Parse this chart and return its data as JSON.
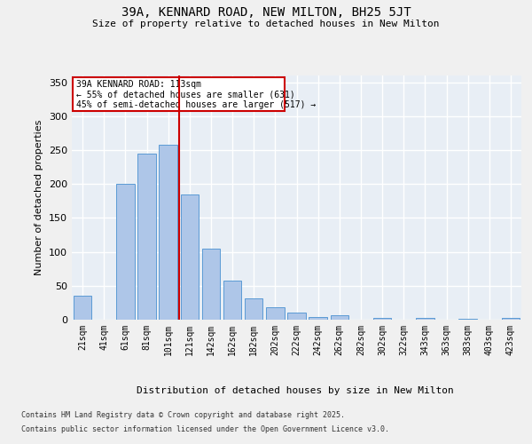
{
  "title": "39A, KENNARD ROAD, NEW MILTON, BH25 5JT",
  "subtitle": "Size of property relative to detached houses in New Milton",
  "xlabel": "Distribution of detached houses by size in New Milton",
  "ylabel": "Number of detached properties",
  "categories": [
    "21sqm",
    "41sqm",
    "61sqm",
    "81sqm",
    "101sqm",
    "121sqm",
    "142sqm",
    "162sqm",
    "182sqm",
    "202sqm",
    "222sqm",
    "242sqm",
    "262sqm",
    "282sqm",
    "302sqm",
    "322sqm",
    "343sqm",
    "363sqm",
    "383sqm",
    "403sqm",
    "423sqm"
  ],
  "values": [
    35,
    0,
    200,
    245,
    258,
    185,
    105,
    58,
    32,
    18,
    10,
    4,
    6,
    0,
    2,
    0,
    3,
    0,
    1,
    0,
    2
  ],
  "bar_color": "#aec6e8",
  "bar_edge_color": "#5b9bd5",
  "bg_color": "#e8eef5",
  "grid_color": "#ffffff",
  "vline_color": "#cc0000",
  "vline_pos": 4.5,
  "annotation_line1": "39A KENNARD ROAD: 113sqm",
  "annotation_line2": "← 55% of detached houses are smaller (631)",
  "annotation_line3": "45% of semi-detached houses are larger (517) →",
  "annotation_box_color": "#cc0000",
  "footnote_line1": "Contains HM Land Registry data © Crown copyright and database right 2025.",
  "footnote_line2": "Contains public sector information licensed under the Open Government Licence v3.0.",
  "ylim": [
    0,
    360
  ],
  "yticks": [
    0,
    50,
    100,
    150,
    200,
    250,
    300,
    350
  ],
  "fig_bg": "#f0f0f0",
  "title_fontsize": 10,
  "subtitle_fontsize": 8,
  "ylabel_fontsize": 8,
  "xlabel_fontsize": 8,
  "tick_fontsize": 7,
  "annotation_fontsize": 7,
  "footnote_fontsize": 6
}
